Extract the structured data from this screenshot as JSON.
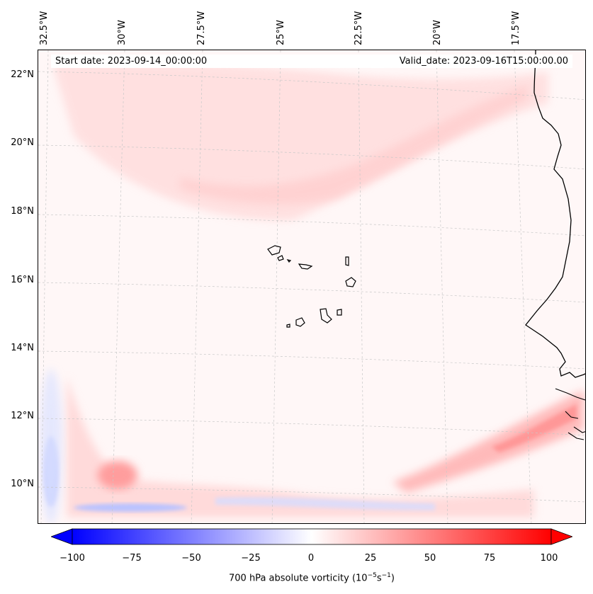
{
  "map": {
    "start_date": "Start date: 2023-09-14_00:00:00",
    "valid_date": "Valid_date: 2023-09-16T15:00:00.00",
    "lon_labels": [
      "32.5°W",
      "30°W",
      "27.5°W",
      "25°W",
      "22.5°W",
      "20°W",
      "17.5°W"
    ],
    "lat_labels": [
      "22°N",
      "20°N",
      "18°N",
      "16°N",
      "14°N",
      "12°N",
      "10°N"
    ]
  },
  "colorbar": {
    "ticks": [
      "−100",
      "−75",
      "−50",
      "−25",
      "0",
      "25",
      "50",
      "75",
      "100"
    ],
    "label_prefix": "700 hPa absolute vorticity (10",
    "label_exp1": "−5",
    "label_mid": "s",
    "label_exp2": "−1",
    "label_suffix": ")",
    "min_color": "#0000ff",
    "mid_color": "#ffffff",
    "max_color": "#ff0000"
  }
}
